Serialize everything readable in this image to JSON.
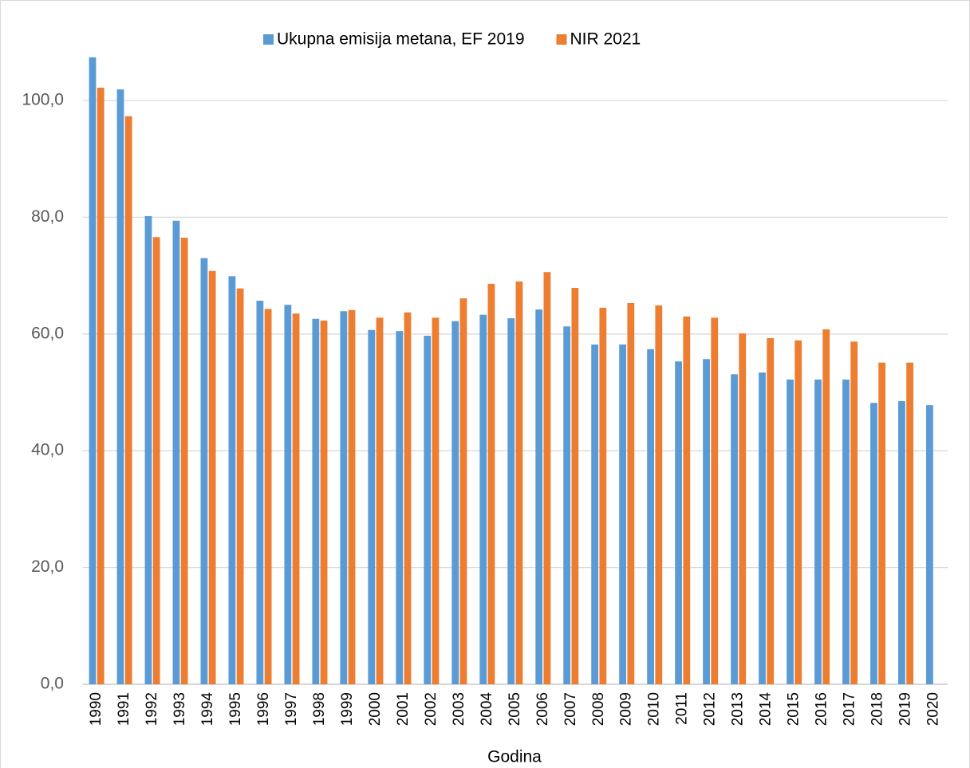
{
  "chart_data": {
    "type": "bar",
    "x_label": "Godina",
    "categories": [
      "1990",
      "1991",
      "1992",
      "1993",
      "1994",
      "1995",
      "1996",
      "1997",
      "1998",
      "1999",
      "2000",
      "2001",
      "2002",
      "2003",
      "2004",
      "2005",
      "2006",
      "2007",
      "2008",
      "2009",
      "2010",
      "2011",
      "2012",
      "2013",
      "2014",
      "2015",
      "2016",
      "2017",
      "2018",
      "2019",
      "2020"
    ],
    "series": [
      {
        "name": "Ukupna emisija metana, EF 2019",
        "color": "#5b9bd5",
        "values": [
          107.4,
          101.9,
          80.2,
          79.4,
          73.0,
          69.9,
          65.7,
          65.0,
          62.6,
          63.9,
          60.7,
          60.5,
          59.7,
          62.2,
          63.3,
          62.7,
          64.2,
          61.3,
          58.2,
          58.2,
          57.4,
          55.3,
          55.7,
          53.1,
          53.4,
          52.2,
          52.2,
          52.2,
          48.2,
          48.5,
          47.8
        ]
      },
      {
        "name": "NIR 2021",
        "color": "#ed7d31",
        "values": [
          102.2,
          97.3,
          76.6,
          76.5,
          70.8,
          67.8,
          64.3,
          63.5,
          62.3,
          64.1,
          62.8,
          63.7,
          62.8,
          66.1,
          68.6,
          69.0,
          70.6,
          67.9,
          64.5,
          65.3,
          64.9,
          63.0,
          62.8,
          60.1,
          59.3,
          58.9,
          60.8,
          58.7,
          55.1,
          55.1,
          null
        ]
      }
    ],
    "ylim": [
      0,
      100
    ],
    "yticks": [
      {
        "value": 0,
        "label": "0,0"
      },
      {
        "value": 20,
        "label": "20,0"
      },
      {
        "value": 40,
        "label": "40,0"
      },
      {
        "value": 60,
        "label": "60,0"
      },
      {
        "value": 80,
        "label": "80,0"
      },
      {
        "value": 100,
        "label": "100,0"
      }
    ],
    "grid": true,
    "legend": "top"
  }
}
